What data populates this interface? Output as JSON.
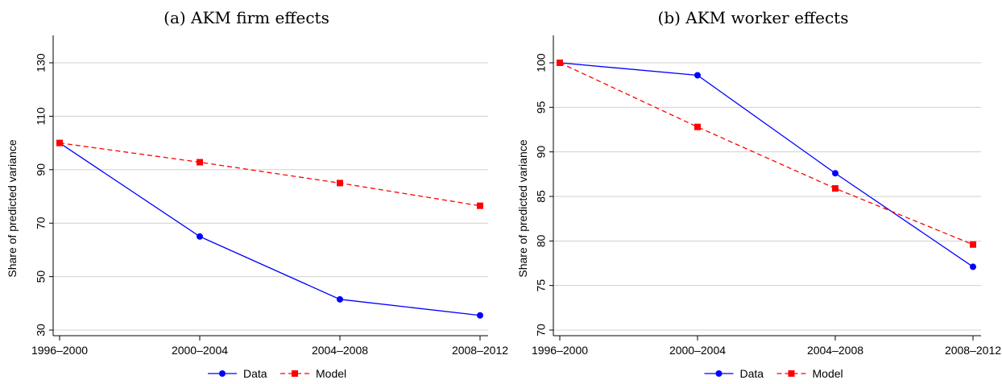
{
  "chart_data": [
    {
      "type": "line",
      "title": "(a) AKM firm effects",
      "ylabel": "Share of predicted variance",
      "xlabel": "",
      "categories": [
        "1996–2000",
        "2000–2004",
        "2004–2008",
        "2008–2012"
      ],
      "yticks": [
        "30",
        "50",
        "70",
        "90",
        "110",
        "130"
      ],
      "ylim": [
        30,
        130
      ],
      "grid": true,
      "legend": "bottom",
      "series": [
        {
          "name": "Data",
          "values": [
            100,
            65,
            41.5,
            35.5
          ],
          "color": "#0000ff",
          "marker": "circle",
          "dash": "solid"
        },
        {
          "name": "Model",
          "values": [
            100,
            92.8,
            85,
            76.5
          ],
          "color": "#ff0000",
          "marker": "square",
          "dash": "dashed"
        }
      ]
    },
    {
      "type": "line",
      "title": "(b) AKM worker effects",
      "ylabel": "Share of predicted variance",
      "xlabel": "",
      "categories": [
        "1996–2000",
        "2000–2004",
        "2004–2008",
        "2008–2012"
      ],
      "yticks": [
        "70",
        "75",
        "80",
        "85",
        "90",
        "95",
        "100"
      ],
      "ylim": [
        70,
        100
      ],
      "grid": true,
      "legend": "bottom",
      "series": [
        {
          "name": "Data",
          "values": [
            100,
            98.6,
            87.6,
            77.1
          ],
          "color": "#0000ff",
          "marker": "circle",
          "dash": "solid"
        },
        {
          "name": "Model",
          "values": [
            100,
            92.8,
            85.9,
            79.6
          ],
          "color": "#ff0000",
          "marker": "square",
          "dash": "dashed"
        }
      ]
    }
  ]
}
